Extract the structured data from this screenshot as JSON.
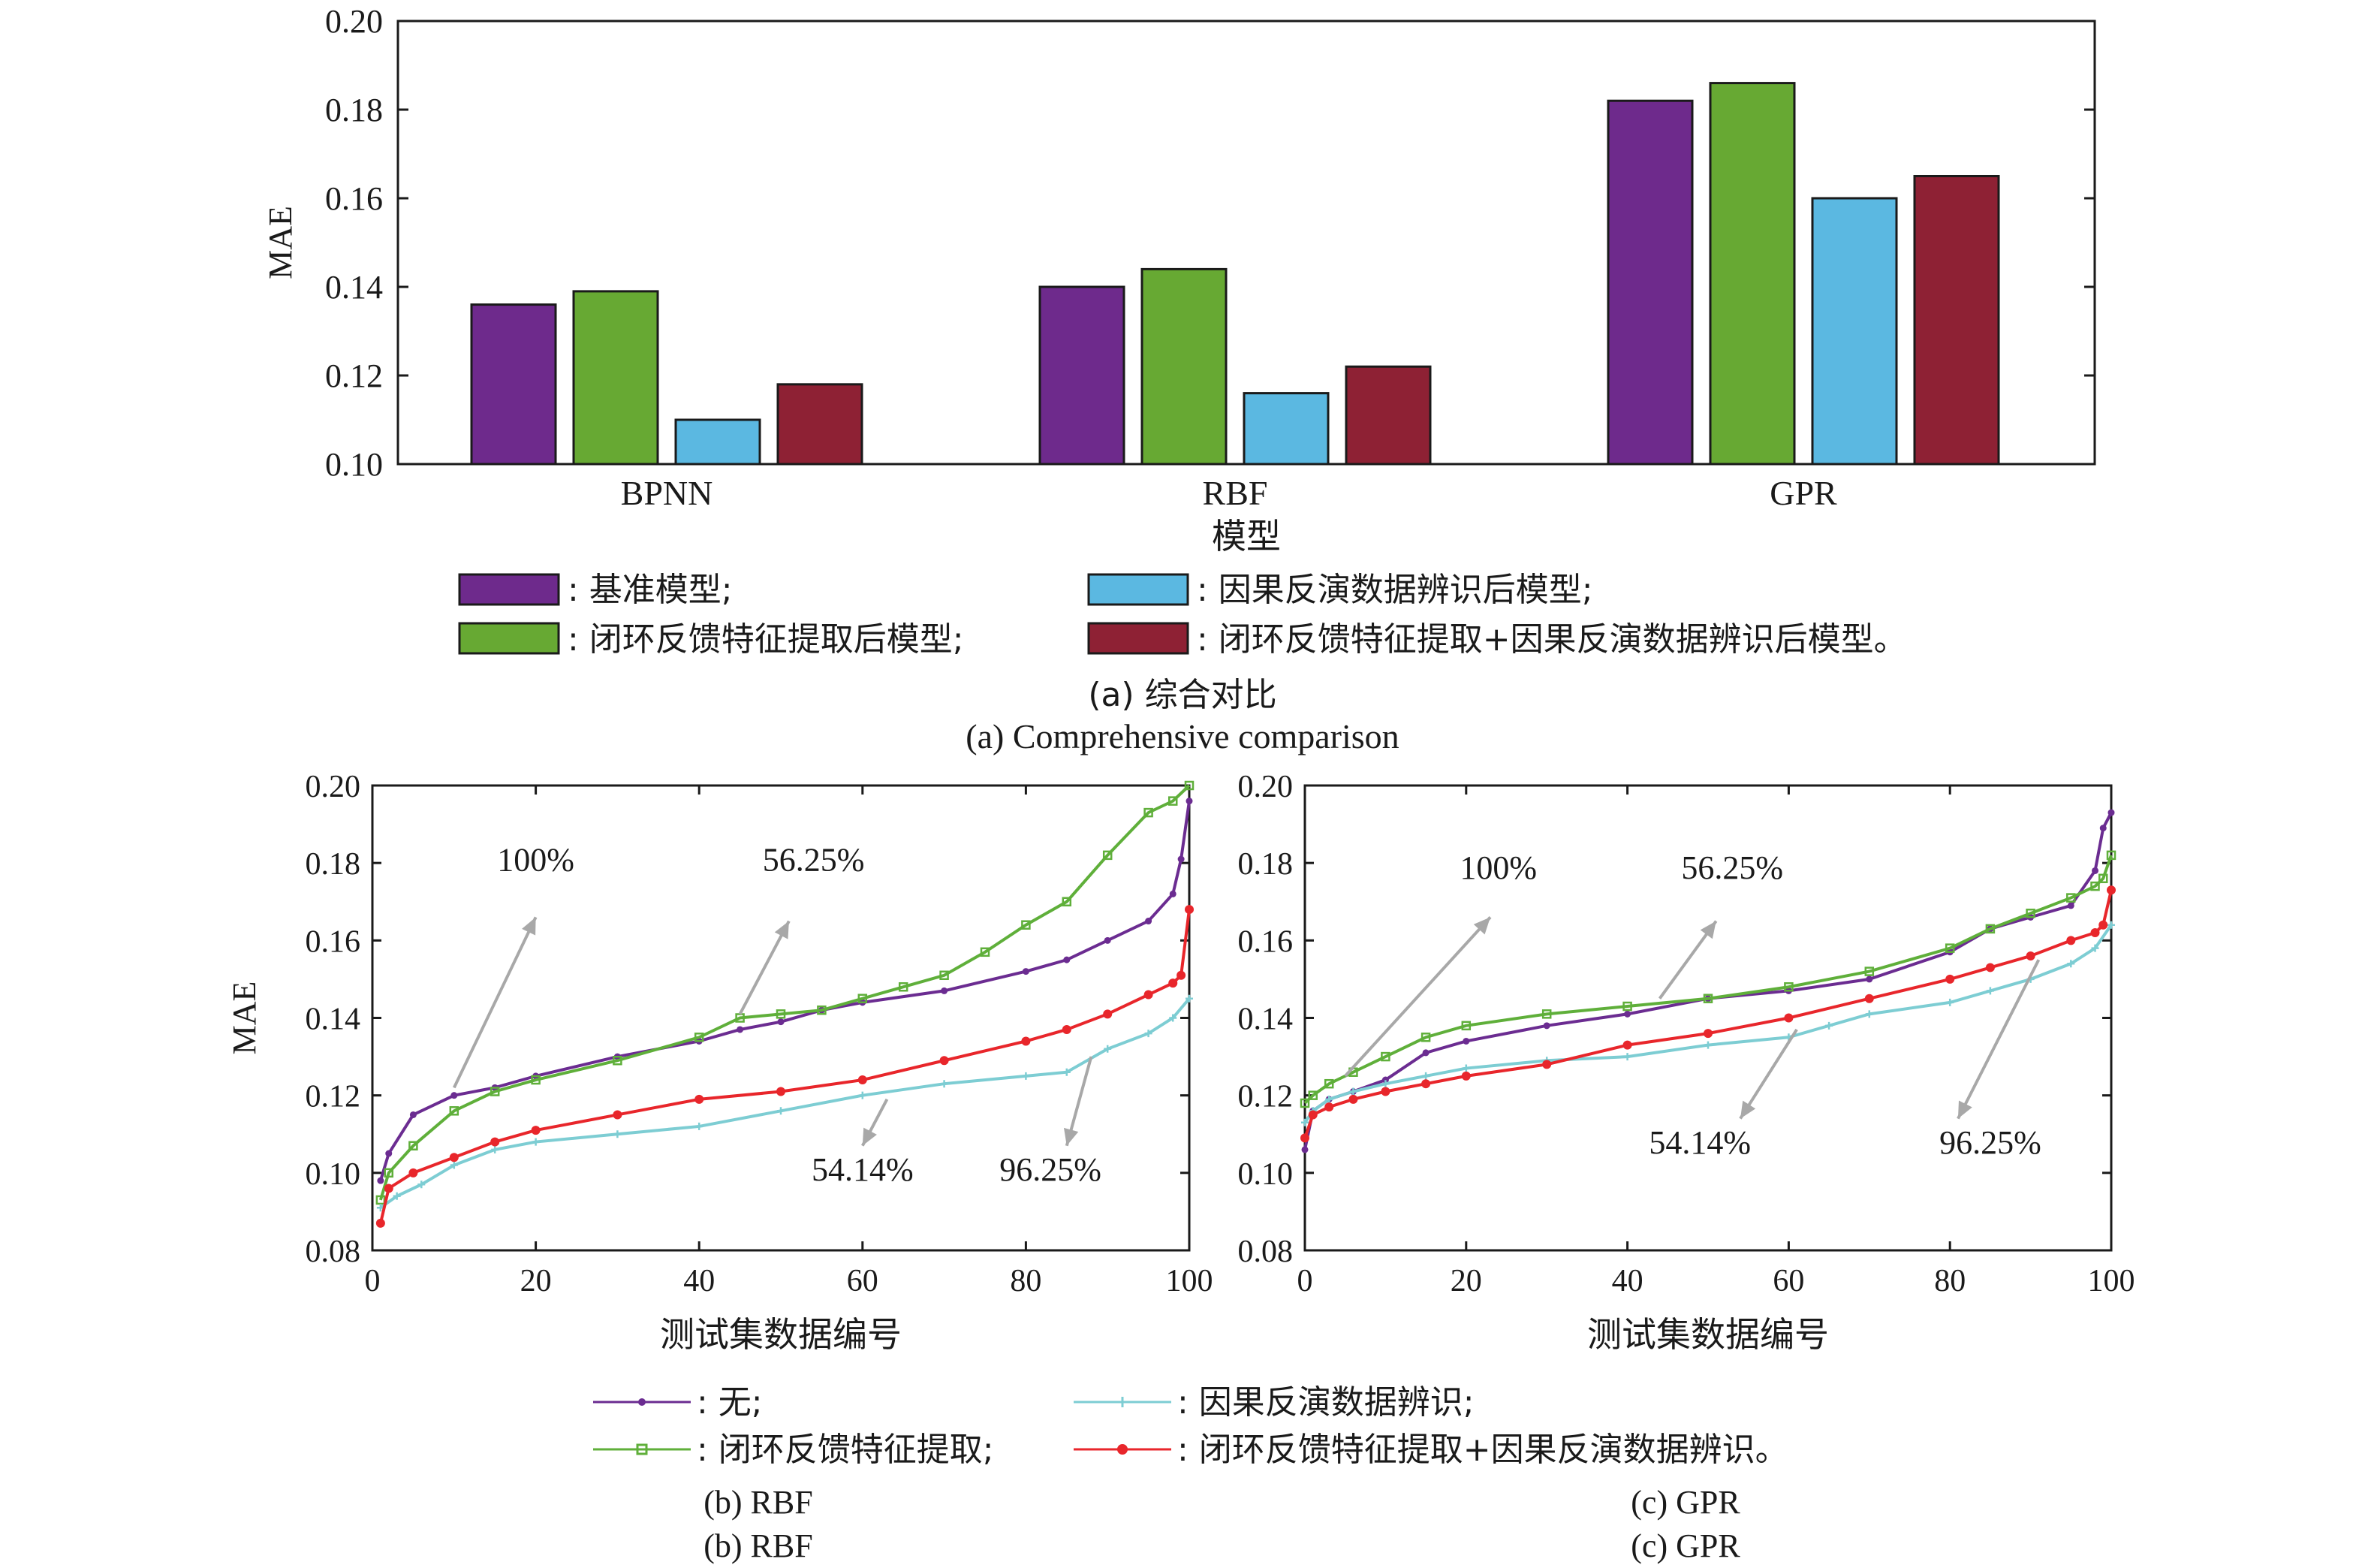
{
  "figure": {
    "panel_a": {
      "caption_cn": "(a) 综合对比",
      "caption_en": "(a) Comprehensive comparison",
      "chart_ref": 0
    },
    "panel_b": {
      "caption_cn": "(b) RBF",
      "caption_en": "(b) RBF",
      "chart_ref": 1
    },
    "panel_c": {
      "caption_cn": "(c) GPR",
      "caption_en": "(c) GPR",
      "chart_ref": 2
    },
    "legend_top": [
      {
        "label": ": 基准模型;",
        "color": "#6E2A8C"
      },
      {
        "label": ": 因果反演数据辨识后模型;",
        "color": "#5BB8E1"
      },
      {
        "label": ": 闭环反馈特征提取后模型;",
        "color": "#67A933"
      },
      {
        "label": ": 闭环反馈特征提取+因果反演数据辨识后模型。",
        "color": "#8E2134"
      }
    ],
    "legend_bottom": [
      {
        "label": ": 无;",
        "color": "#6B2C91",
        "marker": "dot"
      },
      {
        "label": ": 因果反演数据辨识;",
        "color": "#7DCDD3",
        "marker": "plus"
      },
      {
        "label": ": 闭环反馈特征提取;",
        "color": "#5FAF3A",
        "marker": "square"
      },
      {
        "label": ": 闭环反馈特征提取+因果反演数据辨识。",
        "color": "#E8262B",
        "marker": "dot"
      }
    ]
  },
  "chart_data": [
    {
      "type": "bar",
      "categories": [
        "BPNN",
        "RBF",
        "GPR"
      ],
      "xlabel": "模型",
      "ylabel": "MAE",
      "ylim": [
        0.1,
        0.2
      ],
      "yticks": [
        "0.10",
        "0.12",
        "0.14",
        "0.16",
        "0.18",
        "0.20"
      ],
      "grid": false,
      "series": [
        {
          "name": "基准模型",
          "color": "#6E2A8C",
          "values": [
            0.136,
            0.14,
            0.182
          ]
        },
        {
          "name": "闭环反馈特征提取后模型",
          "color": "#67A933",
          "values": [
            0.139,
            0.144,
            0.186
          ]
        },
        {
          "name": "因果反演数据辨识后模型",
          "color": "#5BB8E1",
          "values": [
            0.11,
            0.116,
            0.16
          ]
        },
        {
          "name": "闭环反馈特征提取+因果反演数据辨识后模型",
          "color": "#8E2134",
          "values": [
            0.118,
            0.122,
            0.165
          ]
        }
      ]
    },
    {
      "type": "line",
      "xlabel": "测试集数据编号",
      "ylabel": "MAE",
      "xlim": [
        0,
        100
      ],
      "ylim": [
        0.08,
        0.2
      ],
      "xticks": [
        "0",
        "20",
        "40",
        "60",
        "80",
        "100"
      ],
      "yticks": [
        "0.08",
        "0.10",
        "0.12",
        "0.14",
        "0.16",
        "0.18",
        "0.20"
      ],
      "grid": false,
      "series": [
        {
          "name": "无",
          "color": "#6B2C91",
          "marker": "dot",
          "x": [
            1,
            2,
            5,
            10,
            15,
            20,
            30,
            40,
            45,
            50,
            55,
            60,
            70,
            80,
            85,
            90,
            95,
            98,
            99,
            100
          ],
          "y": [
            0.098,
            0.105,
            0.115,
            0.12,
            0.122,
            0.125,
            0.13,
            0.134,
            0.137,
            0.139,
            0.142,
            0.144,
            0.147,
            0.152,
            0.155,
            0.16,
            0.165,
            0.172,
            0.181,
            0.196
          ]
        },
        {
          "name": "闭环反馈特征提取",
          "color": "#5FAF3A",
          "marker": "square",
          "x": [
            1,
            2,
            5,
            10,
            15,
            20,
            30,
            40,
            45,
            50,
            55,
            60,
            65,
            70,
            75,
            80,
            85,
            90,
            95,
            98,
            100
          ],
          "y": [
            0.093,
            0.1,
            0.107,
            0.116,
            0.121,
            0.124,
            0.129,
            0.135,
            0.14,
            0.141,
            0.142,
            0.145,
            0.148,
            0.151,
            0.157,
            0.164,
            0.17,
            0.182,
            0.193,
            0.196,
            0.2
          ]
        },
        {
          "name": "因果反演数据辨识",
          "color": "#7DCDD3",
          "marker": "plus",
          "x": [
            1,
            3,
            6,
            10,
            15,
            20,
            30,
            40,
            50,
            60,
            70,
            80,
            85,
            90,
            95,
            98,
            100
          ],
          "y": [
            0.091,
            0.094,
            0.097,
            0.102,
            0.106,
            0.108,
            0.11,
            0.112,
            0.116,
            0.12,
            0.123,
            0.125,
            0.126,
            0.132,
            0.136,
            0.14,
            0.145
          ]
        },
        {
          "name": "闭环反馈特征提取+因果反演数据辨识",
          "color": "#E8262B",
          "marker": "dot",
          "x": [
            1,
            2,
            5,
            10,
            15,
            20,
            30,
            40,
            50,
            60,
            70,
            80,
            85,
            90,
            95,
            98,
            99,
            100
          ],
          "y": [
            0.087,
            0.096,
            0.1,
            0.104,
            0.108,
            0.111,
            0.115,
            0.119,
            0.121,
            0.124,
            0.129,
            0.134,
            0.137,
            0.141,
            0.146,
            0.149,
            0.151,
            0.168
          ]
        }
      ],
      "annotations": [
        {
          "text": "100%",
          "x": 20,
          "y": 0.178
        },
        {
          "text": "56.25%",
          "x": 54,
          "y": 0.178
        },
        {
          "text": "54.14%",
          "x": 60,
          "y": 0.098
        },
        {
          "text": "96.25%",
          "x": 83,
          "y": 0.098
        }
      ]
    },
    {
      "type": "line",
      "xlabel": "测试集数据编号",
      "ylabel": "",
      "xlim": [
        0,
        100
      ],
      "ylim": [
        0.08,
        0.2
      ],
      "xticks": [
        "0",
        "20",
        "40",
        "60",
        "80",
        "100"
      ],
      "yticks": [
        "0.08",
        "0.10",
        "0.12",
        "0.14",
        "0.16",
        "0.18",
        "0.20"
      ],
      "grid": false,
      "series": [
        {
          "name": "无",
          "color": "#6B2C91",
          "marker": "dot",
          "x": [
            0,
            1,
            3,
            6,
            10,
            15,
            20,
            30,
            40,
            50,
            60,
            70,
            80,
            85,
            90,
            95,
            98,
            99,
            100
          ],
          "y": [
            0.106,
            0.116,
            0.119,
            0.121,
            0.124,
            0.131,
            0.134,
            0.138,
            0.141,
            0.145,
            0.147,
            0.15,
            0.157,
            0.163,
            0.166,
            0.169,
            0.178,
            0.189,
            0.193
          ]
        },
        {
          "name": "闭环反馈特征提取",
          "color": "#5FAF3A",
          "marker": "square",
          "x": [
            0,
            1,
            3,
            6,
            10,
            15,
            20,
            30,
            40,
            50,
            60,
            70,
            80,
            85,
            90,
            95,
            98,
            99,
            100
          ],
          "y": [
            0.118,
            0.12,
            0.123,
            0.126,
            0.13,
            0.135,
            0.138,
            0.141,
            0.143,
            0.145,
            0.148,
            0.152,
            0.158,
            0.163,
            0.167,
            0.171,
            0.174,
            0.176,
            0.182
          ]
        },
        {
          "name": "因果反演数据辨识",
          "color": "#7DCDD3",
          "marker": "plus",
          "x": [
            0,
            1,
            3,
            6,
            10,
            15,
            20,
            30,
            40,
            50,
            60,
            65,
            70,
            80,
            85,
            90,
            95,
            98,
            100
          ],
          "y": [
            0.113,
            0.116,
            0.119,
            0.121,
            0.123,
            0.125,
            0.127,
            0.129,
            0.13,
            0.133,
            0.135,
            0.138,
            0.141,
            0.144,
            0.147,
            0.15,
            0.154,
            0.158,
            0.164
          ]
        },
        {
          "name": "闭环反馈特征提取+因果反演数据辨识",
          "color": "#E8262B",
          "marker": "dot",
          "x": [
            0,
            1,
            3,
            6,
            10,
            15,
            20,
            30,
            40,
            50,
            60,
            70,
            80,
            85,
            90,
            95,
            98,
            99,
            100
          ],
          "y": [
            0.109,
            0.115,
            0.117,
            0.119,
            0.121,
            0.123,
            0.125,
            0.128,
            0.133,
            0.136,
            0.14,
            0.145,
            0.15,
            0.153,
            0.156,
            0.16,
            0.162,
            0.164,
            0.173
          ]
        }
      ],
      "annotations": [
        {
          "text": "100%",
          "x": 24,
          "y": 0.176
        },
        {
          "text": "56.25%",
          "x": 53,
          "y": 0.176
        },
        {
          "text": "54.14%",
          "x": 49,
          "y": 0.105
        },
        {
          "text": "96.25%",
          "x": 85,
          "y": 0.105
        }
      ]
    }
  ]
}
